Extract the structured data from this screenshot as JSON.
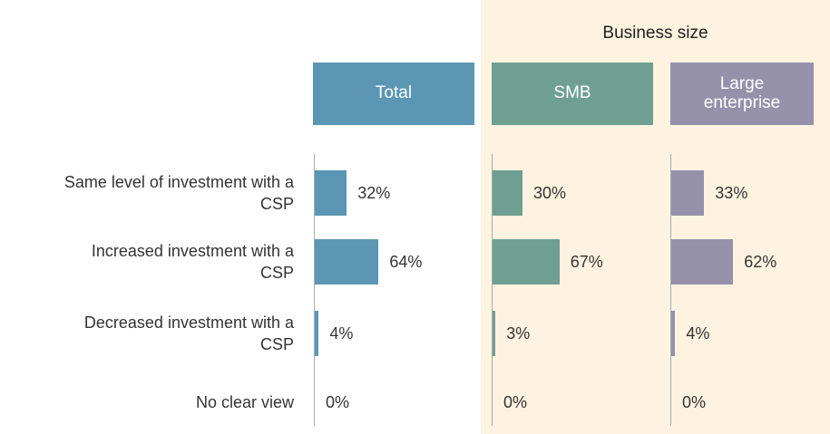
{
  "chart_data": {
    "type": "bar",
    "orientation": "horizontal",
    "group_label": "Business size",
    "categories": [
      "Same level of investment with a CSP",
      "Increased investment with a CSP",
      "Decreased investment with a CSP",
      "No clear view"
    ],
    "series": [
      {
        "name": "Total",
        "color": "#5b97b4",
        "values": [
          32,
          64,
          4,
          0
        ],
        "value_labels": [
          "32%",
          "64%",
          "4%",
          "0%"
        ]
      },
      {
        "name": "SMB",
        "color": "#6f9f92",
        "values": [
          30,
          67,
          3,
          0
        ],
        "value_labels": [
          "30%",
          "67%",
          "3%",
          "0%"
        ]
      },
      {
        "name": "Large enterprise",
        "color": "#9591ab",
        "values": [
          33,
          62,
          4,
          0
        ],
        "value_labels": [
          "33%",
          "62%",
          "4%",
          "0%"
        ]
      }
    ]
  }
}
